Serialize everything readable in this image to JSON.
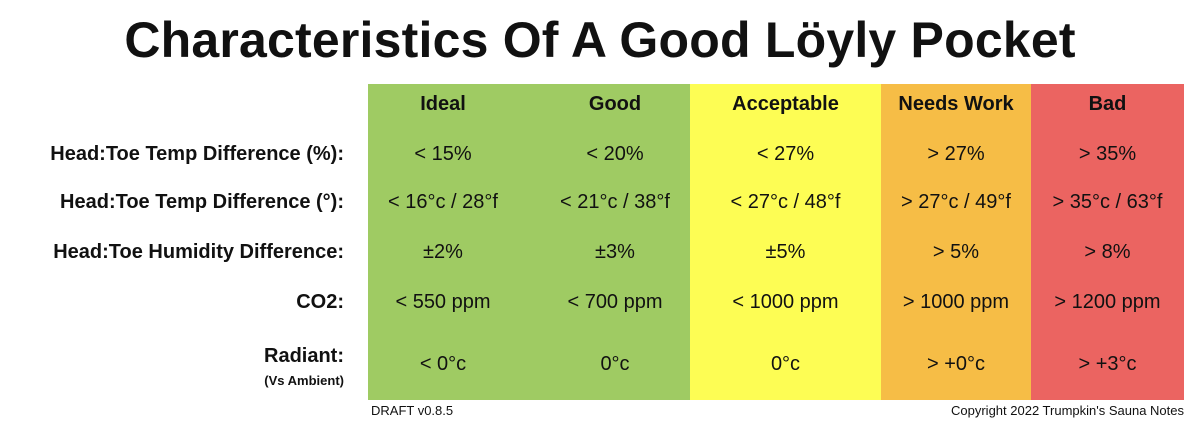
{
  "title": "Characteristics Of A Good Löyly Pocket",
  "colors": {
    "ideal_good": "#9fcb63",
    "acceptable": "#fdfd54",
    "needs_work": "#f6bd46",
    "bad": "#eb6461"
  },
  "columns": [
    "Ideal",
    "Good",
    "Acceptable",
    "Needs Work",
    "Bad"
  ],
  "rows": [
    {
      "label": "Head:Toe Temp Difference (%):",
      "values": [
        "< 15%",
        "< 20%",
        "< 27%",
        "> 27%",
        "> 35%"
      ]
    },
    {
      "label": "Head:Toe Temp Difference (°):",
      "values": [
        "< 16°c / 28°f",
        "< 21°c / 38°f",
        "< 27°c / 48°f",
        "> 27°c / 49°f",
        "> 35°c / 63°f"
      ]
    },
    {
      "label": "Head:Toe Humidity Difference:",
      "values": [
        "±2%",
        "±3%",
        "±5%",
        "> 5%",
        "> 8%"
      ]
    },
    {
      "label": "CO2:",
      "values": [
        "< 550 ppm",
        "< 700 ppm",
        "< 1000 ppm",
        "> 1000 ppm",
        "> 1200 ppm"
      ]
    },
    {
      "label": "Radiant:",
      "sublabel": "(Vs Ambient)",
      "values": [
        "< 0°c",
        "0°c",
        "0°c",
        "> +0°c",
        "> +3°c"
      ]
    }
  ],
  "footer": {
    "version": "DRAFT v0.8.5",
    "copyright": "Copyright 2022 Trumpkin's Sauna Notes"
  }
}
